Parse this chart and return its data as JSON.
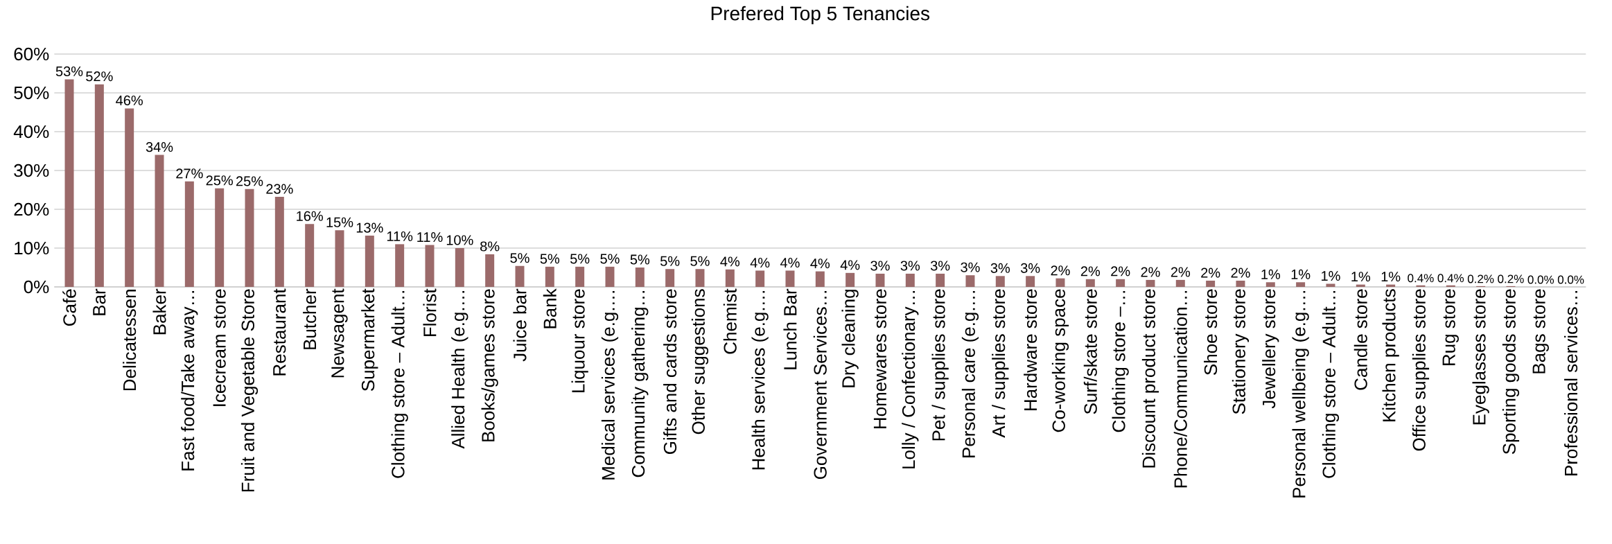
{
  "chart_data": {
    "type": "bar",
    "title": "Prefered Top 5 Tenancies",
    "categories": [
      "Café",
      "Bar",
      "Delicatessen",
      "Baker",
      "Fast food/Take away…",
      "Icecream store",
      "Fruit and Vegetable Store",
      "Restaurant",
      "Butcher",
      "Newsagent",
      "Supermarket",
      "Clothing store – Adult…",
      "Florist",
      "Allied Health (e.g.…",
      "Books/games store",
      "Juice bar",
      "Bank",
      "Liquour store",
      "Medical services (e.g.…",
      "Community gathering…",
      "Gifts and cards store",
      "Other suggestions",
      "Chemist",
      "Health services (e.g.…",
      "Lunch Bar",
      "Government Services…",
      "Dry cleaning",
      "Homewares store",
      "Lolly / Confectionary…",
      "Pet / supplies store",
      "Personal care (e.g.…",
      "Art / supplies store",
      "Hardware store",
      "Co-working space",
      "Surf/skate store",
      "Clothing store –…",
      "Discount product store",
      "Phone/Communication…",
      "Shoe store",
      "Stationery store",
      "Jewellery store",
      "Personal wellbeing (e.g.…",
      "Clothing store – Adult…",
      "Candle store",
      "Kitchen products",
      "Office supplies store",
      "Rug store",
      "Eyeglasses store",
      "Sporting goods store",
      "Bags store",
      "Professional services…"
    ],
    "values": [
      53.5,
      52.2,
      46,
      34,
      27.2,
      25.4,
      25.2,
      23.2,
      16.2,
      14.6,
      13.2,
      11,
      10.8,
      10,
      8.4,
      5.4,
      5.2,
      5.2,
      5.2,
      5,
      4.6,
      4.6,
      4.5,
      4.2,
      4.2,
      4,
      3.6,
      3.4,
      3.4,
      3.4,
      3,
      2.8,
      2.8,
      2.2,
      2,
      2,
      1.8,
      1.8,
      1.6,
      1.6,
      1.2,
      1.2,
      0.8,
      0.6,
      0.6,
      0.4,
      0.4,
      0.2,
      0.2,
      0,
      0
    ],
    "value_labels": [
      "53%",
      "52%",
      "46%",
      "34%",
      "27%",
      "25%",
      "25%",
      "23%",
      "16%",
      "15%",
      "13%",
      "11%",
      "11%",
      "10%",
      "8%",
      "5%",
      "5%",
      "5%",
      "5%",
      "5%",
      "5%",
      "5%",
      "4%",
      "4%",
      "4%",
      "4%",
      "4%",
      "3%",
      "3%",
      "3%",
      "3%",
      "3%",
      "3%",
      "2%",
      "2%",
      "2%",
      "2%",
      "2%",
      "2%",
      "2%",
      "1%",
      "1%",
      "1%",
      "1%",
      "1%",
      "0.4%",
      "0.4%",
      "0.2%",
      "0.2%",
      "0.0%",
      "0.0%"
    ],
    "color": "#9b6a6a",
    "ylim": [
      0,
      60
    ],
    "yticks": [
      {
        "value": 0,
        "label": "0%"
      },
      {
        "value": 10,
        "label": "10%"
      },
      {
        "value": 20,
        "label": "20%"
      },
      {
        "value": 30,
        "label": "30%"
      },
      {
        "value": 40,
        "label": "40%"
      },
      {
        "value": 50,
        "label": "50%"
      },
      {
        "value": 60,
        "label": "60%"
      }
    ],
    "grid": "y"
  }
}
